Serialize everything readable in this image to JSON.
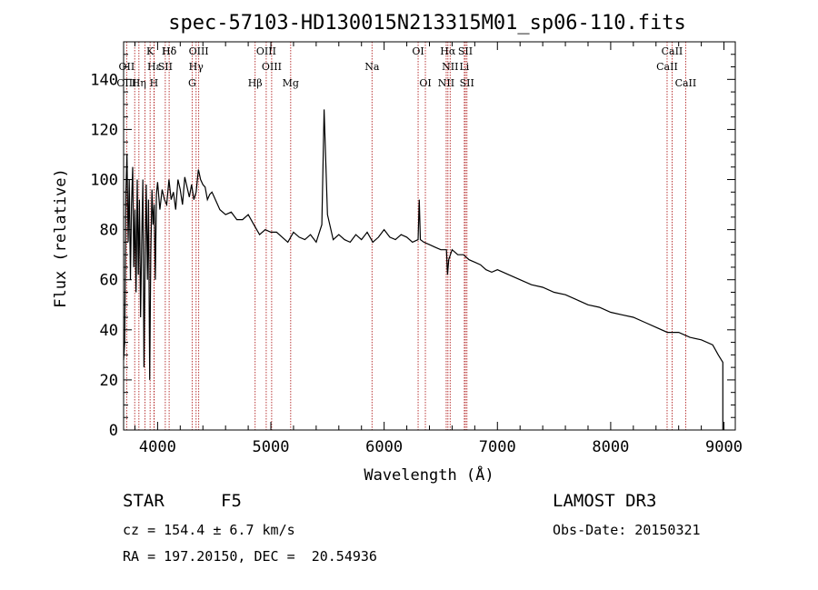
{
  "chart_data": {
    "type": "line",
    "title": "spec-57103-HD130015N213315M01_sp06-110.fits",
    "xlabel": "Wavelength (Å)",
    "ylabel": "Flux (relative)",
    "xlim": [
      3700,
      9100
    ],
    "ylim": [
      0,
      155
    ],
    "x_ticks": [
      4000,
      5000,
      6000,
      7000,
      8000,
      9000
    ],
    "y_ticks": [
      0,
      20,
      40,
      60,
      80,
      100,
      120,
      140
    ],
    "series": [
      {
        "name": "flux",
        "x": [
          3700,
          3710,
          3720,
          3730,
          3740,
          3750,
          3760,
          3770,
          3780,
          3790,
          3800,
          3810,
          3820,
          3830,
          3840,
          3850,
          3860,
          3870,
          3880,
          3890,
          3900,
          3910,
          3920,
          3930,
          3940,
          3950,
          3960,
          3970,
          3980,
          3990,
          4000,
          4020,
          4040,
          4060,
          4080,
          4100,
          4120,
          4140,
          4160,
          4180,
          4200,
          4220,
          4240,
          4260,
          4280,
          4300,
          4320,
          4340,
          4360,
          4380,
          4400,
          4420,
          4440,
          4460,
          4480,
          4500,
          4550,
          4600,
          4650,
          4700,
          4750,
          4800,
          4850,
          4900,
          4950,
          5000,
          5050,
          5100,
          5150,
          5200,
          5250,
          5300,
          5350,
          5400,
          5450,
          5470,
          5500,
          5550,
          5600,
          5650,
          5700,
          5750,
          5800,
          5850,
          5900,
          5950,
          6000,
          6050,
          6100,
          6150,
          6200,
          6250,
          6300,
          6310,
          6320,
          6350,
          6400,
          6450,
          6500,
          6550,
          6560,
          6570,
          6600,
          6650,
          6700,
          6750,
          6800,
          6850,
          6900,
          6950,
          7000,
          7100,
          7200,
          7300,
          7400,
          7500,
          7600,
          7700,
          7800,
          7900,
          8000,
          8100,
          8200,
          8300,
          8400,
          8500,
          8600,
          8700,
          8800,
          8900,
          8950,
          8990
        ],
        "values": [
          28,
          35,
          95,
          110,
          75,
          100,
          60,
          90,
          105,
          65,
          88,
          55,
          100,
          62,
          92,
          45,
          75,
          100,
          25,
          70,
          98,
          60,
          92,
          20,
          70,
          96,
          82,
          90,
          60,
          94,
          99,
          88,
          96,
          92,
          90,
          100,
          92,
          95,
          88,
          100,
          96,
          90,
          101,
          97,
          93,
          98,
          92,
          95,
          104,
          100,
          98,
          97,
          92,
          94,
          95,
          93,
          88,
          86,
          87,
          84,
          84,
          86,
          82,
          78,
          80,
          79,
          79,
          77,
          75,
          79,
          77,
          76,
          78,
          75,
          82,
          128,
          86,
          76,
          78,
          76,
          75,
          78,
          76,
          79,
          75,
          77,
          80,
          77,
          76,
          78,
          77,
          75,
          76,
          92,
          76,
          75,
          74,
          73,
          72,
          72,
          62,
          68,
          72,
          70,
          70,
          68,
          67,
          66,
          64,
          63,
          64,
          62,
          60,
          58,
          57,
          55,
          54,
          52,
          50,
          49,
          47,
          46,
          45,
          43,
          41,
          39,
          39,
          37,
          36,
          34,
          30,
          27
        ]
      }
    ],
    "spectral_lines": [
      {
        "label": "Hδ",
        "wavelength": 4102,
        "row": 1
      },
      {
        "label": "K",
        "wavelength": 3934,
        "row": 1
      },
      {
        "label": "Hδ",
        "wavelength": 4102,
        "row": 1
      },
      {
        "label": "OIII",
        "wavelength": 4363,
        "row": 1
      },
      {
        "label": "OIII",
        "wavelength": 4959,
        "row": 1
      },
      {
        "label": "OI",
        "wavelength": 6300,
        "row": 1
      },
      {
        "label": "Hα",
        "wavelength": 6563,
        "row": 1
      },
      {
        "label": "SII",
        "wavelength": 6717,
        "row": 1
      },
      {
        "label": "CaII",
        "wavelength": 8542,
        "row": 1
      },
      {
        "label": "OII",
        "wavelength": 3727,
        "row": 2
      },
      {
        "label": "Hε",
        "wavelength": 3970,
        "row": 2
      },
      {
        "label": "SII",
        "wavelength": 4068,
        "row": 2
      },
      {
        "label": "Hγ",
        "wavelength": 4340,
        "row": 2
      },
      {
        "label": "OIII",
        "wavelength": 5007,
        "row": 2
      },
      {
        "label": "Na",
        "wavelength": 5893,
        "row": 2
      },
      {
        "label": "NII",
        "wavelength": 6583,
        "row": 2
      },
      {
        "label": "Li",
        "wavelength": 6708,
        "row": 2
      },
      {
        "label": "CaII",
        "wavelength": 8498,
        "row": 2
      },
      {
        "label": "OIII",
        "wavelength": 3727,
        "row": 3
      },
      {
        "label": "Hη",
        "wavelength": 3835,
        "row": 3
      },
      {
        "label": "H",
        "wavelength": 3968,
        "row": 3
      },
      {
        "label": "G",
        "wavelength": 4305,
        "row": 3
      },
      {
        "label": "Hβ",
        "wavelength": 4861,
        "row": 3
      },
      {
        "label": "Mg",
        "wavelength": 5175,
        "row": 3
      },
      {
        "label": "OI",
        "wavelength": 6364,
        "row": 3
      },
      {
        "label": "NII",
        "wavelength": 6548,
        "row": 3
      },
      {
        "label": "SII",
        "wavelength": 6731,
        "row": 3
      },
      {
        "label": "CaII",
        "wavelength": 8662,
        "row": 3
      }
    ],
    "line_wavelengths": [
      3727,
      3798,
      3835,
      3889,
      3934,
      3968,
      3970,
      4068,
      4102,
      4305,
      4340,
      4363,
      4861,
      4959,
      5007,
      5175,
      5893,
      6300,
      6364,
      6548,
      6563,
      6583,
      6708,
      6717,
      6731,
      8498,
      8542,
      8662
    ]
  },
  "info": {
    "object_class": "STAR",
    "subclass": "F5",
    "survey": "LAMOST DR3",
    "redshift": "cz = 154.4 ± 6.7 km/s",
    "obs_date": "Obs-Date: 20150321",
    "coords": "RA = 197.20150, DEC =  20.54936"
  },
  "colors": {
    "line_marker": "#b22222",
    "spectrum": "#000000"
  }
}
